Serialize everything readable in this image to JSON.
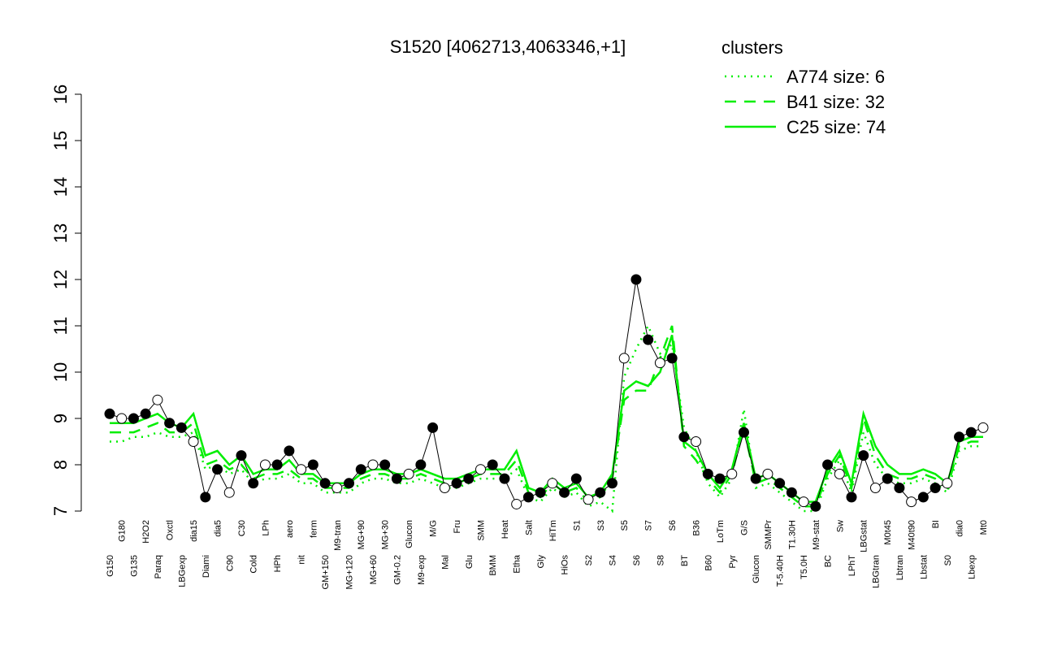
{
  "chart_data": {
    "type": "line",
    "title": "S1520 [4062713,4063346,+1]",
    "legend_title": "clusters",
    "legend_color": "#00ee00",
    "categories": [
      "G150",
      "G180",
      "G135",
      "H2O2",
      "Paraq",
      "Oxctl",
      "LBGexp",
      "dia15",
      "Diami",
      "dia5",
      "C90",
      "C30",
      "Cold",
      "LPh",
      "HPh",
      "aero",
      "nit",
      "ferm",
      "GM+150",
      "M9-tran",
      "MG+120",
      "MG+90",
      "MG+60",
      "MG+30",
      "GM-0.2",
      "Glucon",
      "M9-exp",
      "M/G",
      "Mal",
      "Fru",
      "Glu",
      "SMM",
      "BMM",
      "Heat",
      "Etha",
      "Salt",
      "Gly",
      "HiTm",
      "HiOs",
      "S1",
      "S2",
      "S3",
      "S4",
      "S5",
      "S6",
      "S7",
      "S8",
      "S6",
      "BT",
      "B36",
      "B60",
      "LoTm",
      "Pyr",
      "G/S",
      "Glucon",
      "SMMPr",
      "T-5.40H",
      "T1.30H",
      "T5.0H",
      "M9-stat",
      "BC",
      "Sw",
      "LPhT",
      "LBGstat",
      "LBGtran",
      "M0t45",
      "Lbtran",
      "M40t90",
      "Lbstat",
      "BI",
      "S0",
      "dia0",
      "Lbexp",
      "Mt0"
    ],
    "values": [
      9.1,
      9.0,
      9.0,
      9.1,
      9.4,
      8.9,
      8.8,
      8.5,
      7.3,
      7.9,
      7.4,
      8.2,
      7.6,
      8.0,
      8.0,
      8.3,
      7.9,
      8.0,
      7.6,
      7.5,
      7.6,
      7.9,
      8.0,
      8.0,
      7.7,
      7.8,
      8.0,
      8.8,
      7.5,
      7.6,
      7.7,
      7.9,
      8.0,
      7.7,
      7.15,
      7.3,
      7.4,
      7.6,
      7.4,
      7.7,
      7.25,
      7.4,
      7.6,
      10.3,
      12.0,
      10.7,
      10.2,
      10.3,
      8.6,
      8.5,
      7.8,
      7.7,
      7.8,
      8.7,
      7.7,
      7.8,
      7.6,
      7.4,
      7.2,
      7.1,
      8.0,
      7.8,
      7.3,
      8.2,
      7.5,
      7.7,
      7.5,
      7.2,
      7.3,
      7.5,
      7.6,
      8.6,
      8.7,
      8.8
    ],
    "color": "#000000",
    "series": [
      {
        "name": "A774 size: 6",
        "color": "#00ee00",
        "line_style": "dotted",
        "values": [
          8.5,
          8.5,
          8.6,
          8.6,
          8.7,
          8.6,
          8.6,
          8.7,
          7.9,
          8.0,
          7.8,
          7.9,
          7.6,
          7.7,
          7.7,
          7.8,
          7.6,
          7.6,
          7.4,
          7.4,
          7.4,
          7.6,
          7.7,
          7.7,
          7.6,
          7.6,
          7.7,
          7.6,
          7.5,
          7.5,
          7.6,
          7.7,
          7.7,
          7.7,
          7.9,
          7.3,
          7.2,
          7.5,
          7.3,
          7.4,
          7.1,
          7.2,
          7.0,
          9.9,
          10.5,
          11.0,
          10.4,
          10.6,
          8.8,
          8.3,
          7.6,
          7.3,
          7.7,
          9.2,
          7.5,
          7.6,
          7.4,
          7.2,
          7.0,
          7.0,
          7.7,
          8.1,
          7.4,
          8.7,
          8.0,
          7.7,
          7.6,
          7.6,
          7.7,
          7.6,
          7.4,
          8.3,
          8.4,
          8.4
        ]
      },
      {
        "name": "B41 size: 32",
        "color": "#00ee00",
        "line_style": "dashed",
        "values": [
          8.7,
          8.7,
          8.7,
          8.8,
          8.9,
          8.7,
          8.7,
          8.9,
          8.0,
          8.1,
          7.9,
          8.0,
          7.7,
          7.8,
          7.8,
          7.9,
          7.7,
          7.7,
          7.5,
          7.5,
          7.5,
          7.7,
          7.8,
          7.8,
          7.7,
          7.7,
          7.8,
          7.7,
          7.6,
          7.6,
          7.7,
          7.8,
          7.8,
          7.8,
          8.1,
          7.4,
          7.3,
          7.6,
          7.4,
          7.5,
          7.2,
          7.3,
          7.7,
          9.4,
          9.6,
          9.6,
          10.3,
          11.0,
          8.4,
          8.1,
          7.7,
          7.4,
          7.8,
          8.8,
          7.6,
          7.7,
          7.5,
          7.3,
          7.1,
          7.1,
          7.8,
          8.2,
          7.5,
          9.0,
          8.2,
          7.8,
          7.7,
          7.7,
          7.8,
          7.7,
          7.5,
          8.4,
          8.5,
          8.5
        ]
      },
      {
        "name": "C25 size: 74",
        "color": "#00ee00",
        "line_style": "solid",
        "values": [
          8.9,
          8.9,
          8.9,
          9.0,
          9.1,
          8.9,
          8.8,
          9.1,
          8.2,
          8.3,
          8.0,
          8.2,
          7.8,
          7.9,
          7.9,
          8.1,
          7.8,
          7.8,
          7.6,
          7.6,
          7.6,
          7.8,
          7.9,
          7.9,
          7.8,
          7.8,
          7.9,
          7.8,
          7.7,
          7.7,
          7.8,
          7.9,
          7.9,
          7.9,
          8.3,
          7.5,
          7.4,
          7.7,
          7.5,
          7.6,
          7.3,
          7.4,
          7.8,
          9.6,
          9.8,
          9.7,
          10.0,
          10.8,
          8.5,
          8.3,
          7.8,
          7.5,
          7.9,
          8.9,
          7.7,
          7.8,
          7.6,
          7.4,
          7.2,
          7.2,
          7.9,
          8.3,
          7.6,
          9.1,
          8.4,
          8.0,
          7.8,
          7.8,
          7.9,
          7.8,
          7.6,
          8.5,
          8.6,
          8.6
        ]
      }
    ],
    "ylim": [
      7,
      16
    ],
    "yticks": [
      7,
      8,
      9,
      10,
      11,
      12,
      13,
      14,
      15,
      16
    ],
    "legend_position": "top-right"
  }
}
